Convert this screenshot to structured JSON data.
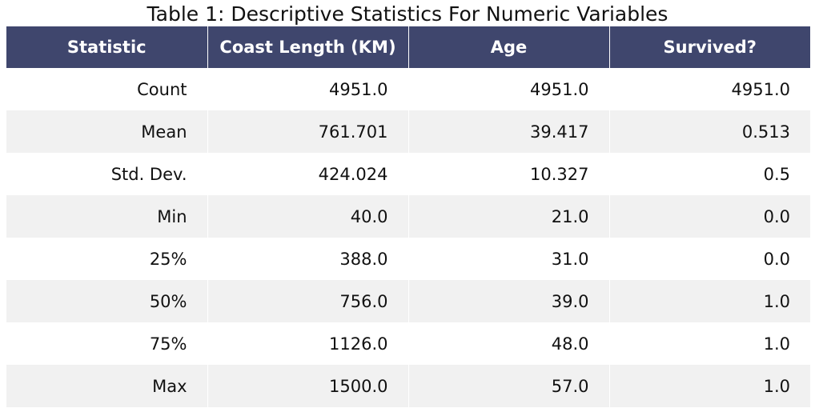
{
  "title": "Table 1: Descriptive Statistics For Numeric Variables",
  "colors": {
    "header_bg": "#3f466d",
    "header_text": "#ffffff",
    "row_alt": "#f1f1f1",
    "row_base": "#ffffff"
  },
  "chart_data": {
    "type": "table",
    "title": "Table 1: Descriptive Statistics For Numeric Variables",
    "columns": [
      "Statistic",
      "Coast Length (KM)",
      "Age",
      "Survived?"
    ],
    "rows": [
      [
        "Count",
        "4951.0",
        "4951.0",
        "4951.0"
      ],
      [
        "Mean",
        "761.701",
        "39.417",
        "0.513"
      ],
      [
        "Std. Dev.",
        "424.024",
        "10.327",
        "0.5"
      ],
      [
        "Min",
        "40.0",
        "21.0",
        "0.0"
      ],
      [
        "25%",
        "388.0",
        "31.0",
        "0.0"
      ],
      [
        "50%",
        "756.0",
        "39.0",
        "1.0"
      ],
      [
        "75%",
        "1126.0",
        "48.0",
        "1.0"
      ],
      [
        "Max",
        "1500.0",
        "57.0",
        "1.0"
      ]
    ]
  }
}
